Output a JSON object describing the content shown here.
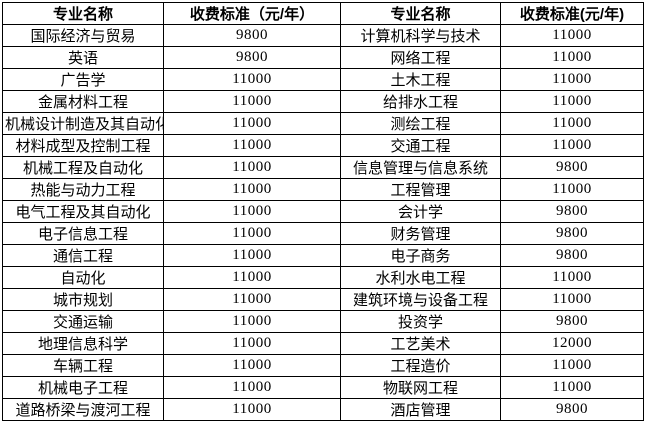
{
  "table": {
    "headers": [
      "专业名称",
      "收费标准（元/年）",
      "专业名称",
      "收费标准(元/年)"
    ],
    "rows": [
      [
        "国际经济与贸易",
        "9800",
        "计算机科学与技术",
        "11000"
      ],
      [
        "英语",
        "9800",
        "网络工程",
        "11000"
      ],
      [
        "广告学",
        "11000",
        "土木工程",
        "11000"
      ],
      [
        "金属材料工程",
        "11000",
        "给排水工程",
        "11000"
      ],
      [
        "机械设计制造及其自动化",
        "11000",
        "测绘工程",
        "11000"
      ],
      [
        "材料成型及控制工程",
        "11000",
        "交通工程",
        "11000"
      ],
      [
        "机械工程及自动化",
        "11000",
        "信息管理与信息系统",
        "9800"
      ],
      [
        "热能与动力工程",
        "11000",
        "工程管理",
        "11000"
      ],
      [
        "电气工程及其自动化",
        "11000",
        "会计学",
        "9800"
      ],
      [
        "电子信息工程",
        "11000",
        "财务管理",
        "9800"
      ],
      [
        "通信工程",
        "11000",
        "电子商务",
        "9800"
      ],
      [
        "自动化",
        "11000",
        "水利水电工程",
        "11000"
      ],
      [
        "城市规划",
        "11000",
        "建筑环境与设备工程",
        "11000"
      ],
      [
        "交通运输",
        "11000",
        "投资学",
        "9800"
      ],
      [
        "地理信息科学",
        "11000",
        "工艺美术",
        "12000"
      ],
      [
        "车辆工程",
        "11000",
        "工程造价",
        "11000"
      ],
      [
        "机械电子工程",
        "11000",
        "物联网工程",
        "11000"
      ],
      [
        "道路桥梁与渡河工程",
        "11000",
        "酒店管理",
        "9800"
      ]
    ],
    "colors": {
      "border": "#000000",
      "text": "#000000",
      "background": "#ffffff"
    }
  }
}
